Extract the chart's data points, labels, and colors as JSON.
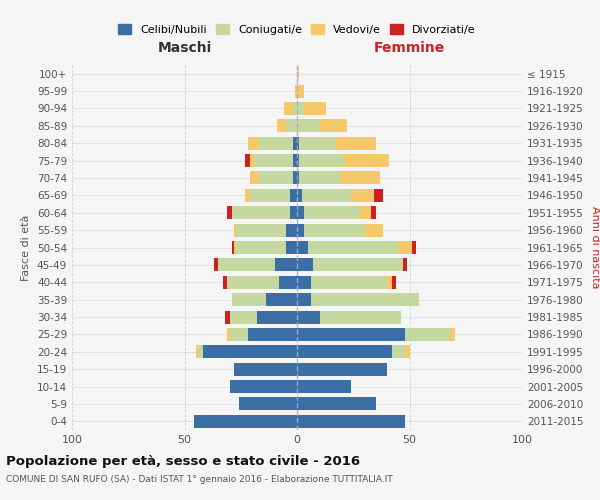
{
  "age_groups": [
    "0-4",
    "5-9",
    "10-14",
    "15-19",
    "20-24",
    "25-29",
    "30-34",
    "35-39",
    "40-44",
    "45-49",
    "50-54",
    "55-59",
    "60-64",
    "65-69",
    "70-74",
    "75-79",
    "80-84",
    "85-89",
    "90-94",
    "95-99",
    "100+"
  ],
  "birth_years": [
    "2011-2015",
    "2006-2010",
    "2001-2005",
    "1996-2000",
    "1991-1995",
    "1986-1990",
    "1981-1985",
    "1976-1980",
    "1971-1975",
    "1966-1970",
    "1961-1965",
    "1956-1960",
    "1951-1955",
    "1946-1950",
    "1941-1945",
    "1936-1940",
    "1931-1935",
    "1926-1930",
    "1921-1925",
    "1916-1920",
    "≤ 1915"
  ],
  "colors": {
    "celibe": "#3a6ea5",
    "coniugato": "#c5d8a0",
    "vedovo": "#f5c96a",
    "divorziato": "#cc2222"
  },
  "maschi": {
    "celibe": [
      46,
      26,
      30,
      28,
      42,
      22,
      18,
      14,
      8,
      10,
      5,
      5,
      3,
      3,
      2,
      2,
      2,
      0,
      0,
      0,
      0
    ],
    "coniugato": [
      0,
      0,
      0,
      0,
      2,
      8,
      12,
      15,
      23,
      25,
      22,
      22,
      26,
      18,
      15,
      17,
      15,
      5,
      2,
      0,
      0
    ],
    "vedovo": [
      0,
      0,
      0,
      0,
      1,
      1,
      0,
      0,
      0,
      0,
      1,
      1,
      0,
      2,
      4,
      2,
      5,
      4,
      4,
      1,
      0
    ],
    "divorziato": [
      0,
      0,
      0,
      0,
      0,
      0,
      2,
      0,
      2,
      2,
      1,
      0,
      2,
      0,
      0,
      2,
      0,
      0,
      0,
      0,
      0
    ]
  },
  "femmine": {
    "celibe": [
      48,
      35,
      24,
      40,
      42,
      48,
      10,
      6,
      6,
      7,
      5,
      3,
      3,
      2,
      1,
      1,
      1,
      0,
      0,
      0,
      0
    ],
    "coniugato": [
      0,
      0,
      0,
      0,
      6,
      20,
      36,
      48,
      34,
      40,
      40,
      27,
      25,
      22,
      18,
      20,
      16,
      10,
      3,
      0,
      0
    ],
    "vedovo": [
      0,
      0,
      0,
      0,
      2,
      2,
      0,
      0,
      2,
      0,
      6,
      8,
      5,
      10,
      18,
      20,
      18,
      12,
      10,
      3,
      1
    ],
    "divorziato": [
      0,
      0,
      0,
      0,
      0,
      0,
      0,
      0,
      2,
      2,
      2,
      0,
      2,
      4,
      0,
      0,
      0,
      0,
      0,
      0,
      0
    ]
  },
  "xlim": 100,
  "title": "Popolazione per età, sesso e stato civile - 2016",
  "subtitle": "COMUNE DI SAN RUFO (SA) - Dati ISTAT 1° gennaio 2016 - Elaborazione TUTTITALIA.IT",
  "ylabel_left": "Fasce di età",
  "ylabel_right": "Anni di nascita",
  "xlabel_left": "Maschi",
  "xlabel_right": "Femmine",
  "legend_labels": [
    "Celibi/Nubili",
    "Coniugati/e",
    "Vedovi/e",
    "Divorziati/e"
  ],
  "background_color": "#f5f5f5",
  "grid_color": "#cccccc"
}
